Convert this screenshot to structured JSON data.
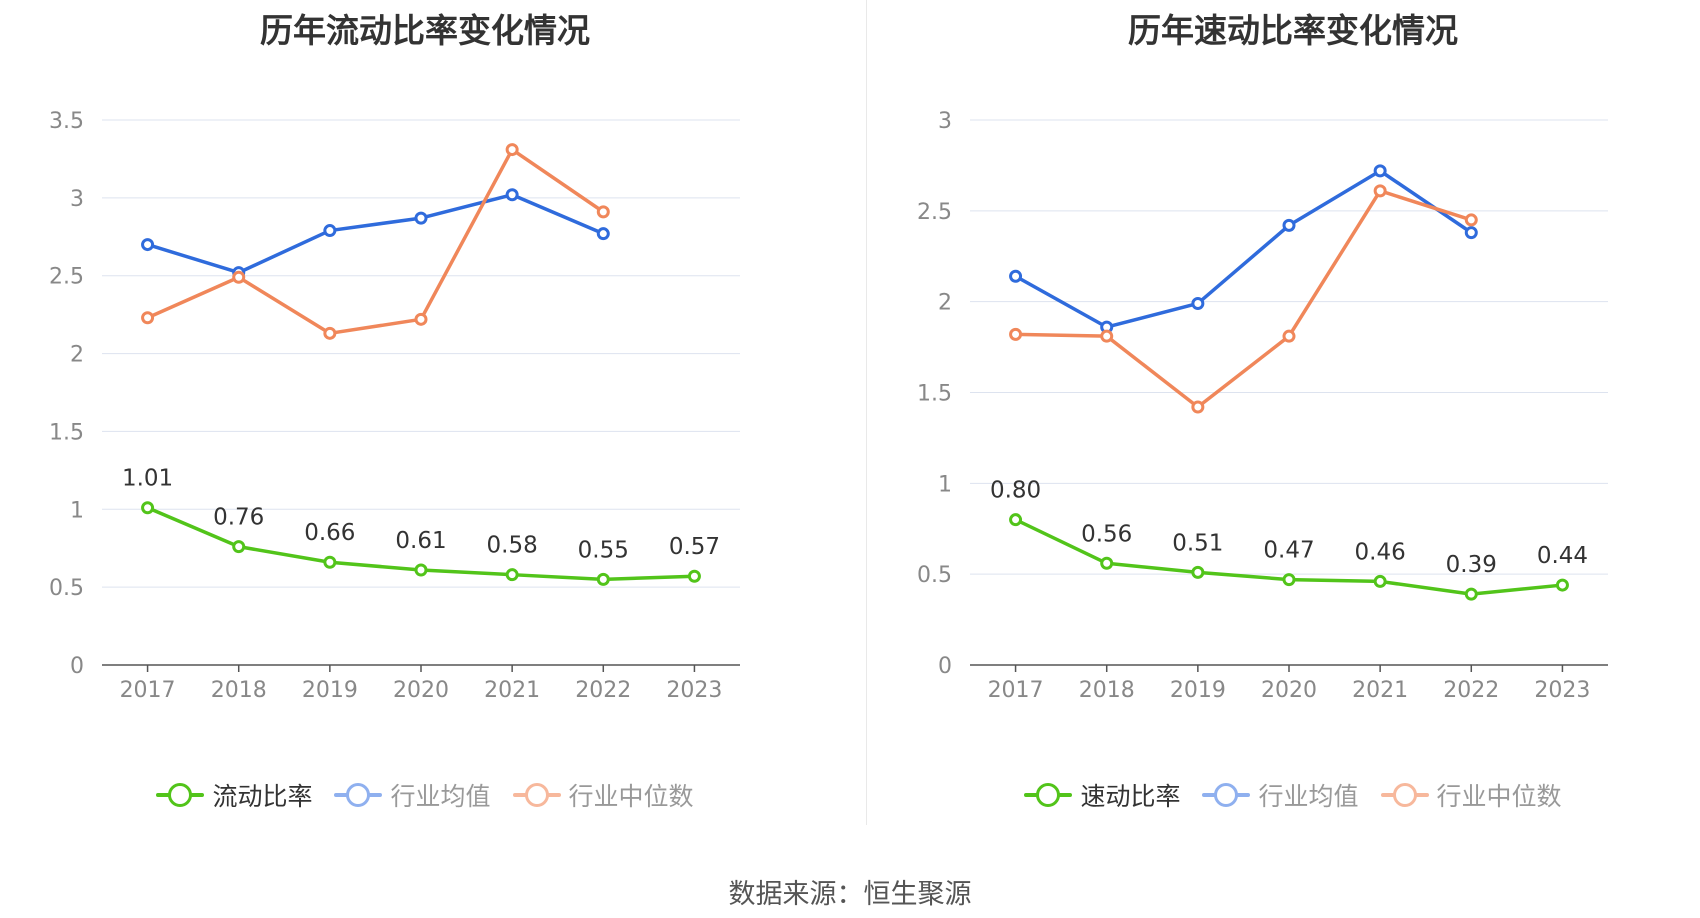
{
  "chart_data": [
    {
      "type": "line",
      "title": "历年流动比率变化情况",
      "categories": [
        "2017",
        "2018",
        "2019",
        "2020",
        "2021",
        "2022",
        "2023"
      ],
      "ylim": [
        0,
        3.5
      ],
      "yticks": [
        "0",
        "0.5",
        "1",
        "1.5",
        "2",
        "2.5",
        "3",
        "3.5"
      ],
      "series": [
        {
          "name": "流动比率",
          "color": "#52c41a",
          "values": [
            1.01,
            0.76,
            0.66,
            0.61,
            0.58,
            0.55,
            0.57
          ],
          "labels": [
            "1.01",
            "0.76",
            "0.66",
            "0.61",
            "0.58",
            "0.55",
            "0.57"
          ]
        },
        {
          "name": "行业均值",
          "color": "#2f6bdc",
          "values": [
            2.7,
            2.52,
            2.79,
            2.87,
            3.02,
            2.77,
            null
          ]
        },
        {
          "name": "行业中位数",
          "color": "#f0875a",
          "values": [
            2.23,
            2.49,
            2.13,
            2.22,
            3.31,
            2.91,
            null
          ]
        }
      ],
      "grid": true,
      "legend": "bottom"
    },
    {
      "type": "line",
      "title": "历年速动比率变化情况",
      "categories": [
        "2017",
        "2018",
        "2019",
        "2020",
        "2021",
        "2022",
        "2023"
      ],
      "ylim": [
        0,
        3
      ],
      "yticks": [
        "0",
        "0.5",
        "1",
        "1.5",
        "2",
        "2.5",
        "3"
      ],
      "series": [
        {
          "name": "速动比率",
          "color": "#52c41a",
          "values": [
            0.8,
            0.56,
            0.51,
            0.47,
            0.46,
            0.39,
            0.44
          ],
          "labels": [
            "0.80",
            "0.56",
            "0.51",
            "0.47",
            "0.46",
            "0.39",
            "0.44"
          ]
        },
        {
          "name": "行业均值",
          "color": "#2f6bdc",
          "values": [
            2.14,
            1.86,
            1.99,
            2.42,
            2.72,
            2.38,
            null
          ]
        },
        {
          "name": "行业中位数",
          "color": "#f0875a",
          "values": [
            1.82,
            1.81,
            1.42,
            1.81,
            2.61,
            2.45,
            null
          ]
        }
      ],
      "grid": true,
      "legend": "bottom"
    }
  ],
  "legend_colors": {
    "active": "#52c41a",
    "mean": "#8fb0ef",
    "median": "#f7b89c"
  },
  "footer": "数据来源：恒生聚源"
}
